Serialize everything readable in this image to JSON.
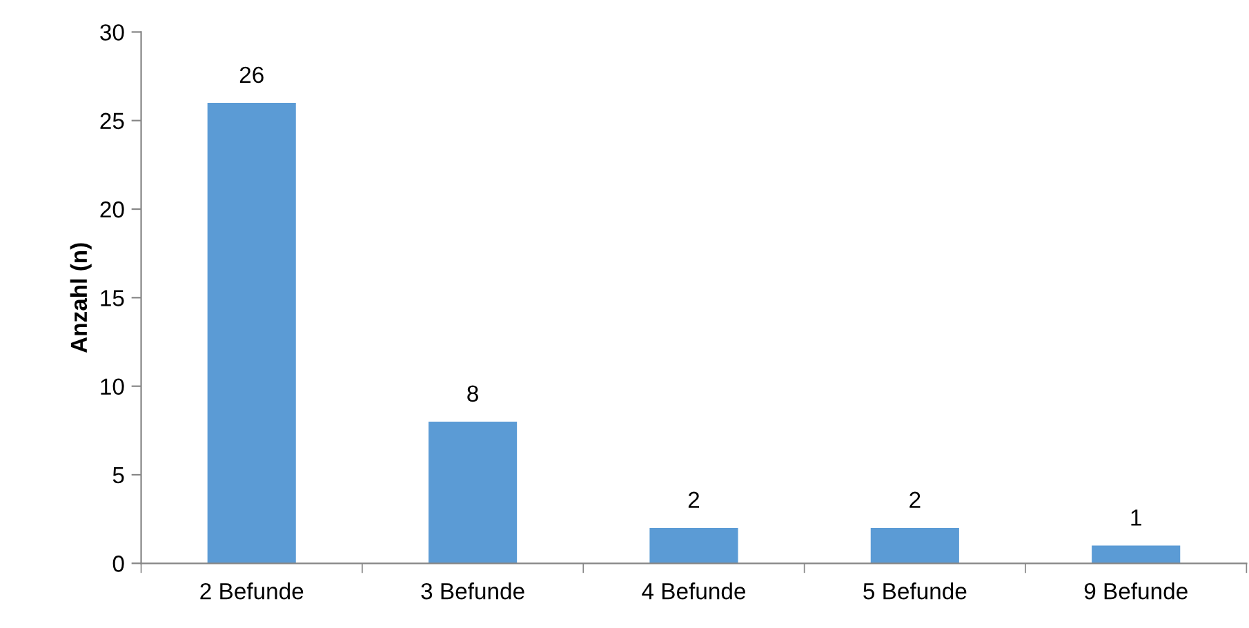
{
  "chart_data": {
    "type": "bar",
    "ylabel": "Anzahl (n)",
    "categories": [
      "2 Befunde",
      "3 Befunde",
      "4 Befunde",
      "5 Befunde",
      "9 Befunde"
    ],
    "values": [
      26,
      8,
      2,
      2,
      1
    ],
    "color": "#5b9bd5",
    "ylim": [
      0,
      30
    ],
    "yticks": [
      0,
      5,
      10,
      15,
      20,
      25,
      30
    ],
    "data_labels": true,
    "grid": false,
    "legend": false
  }
}
